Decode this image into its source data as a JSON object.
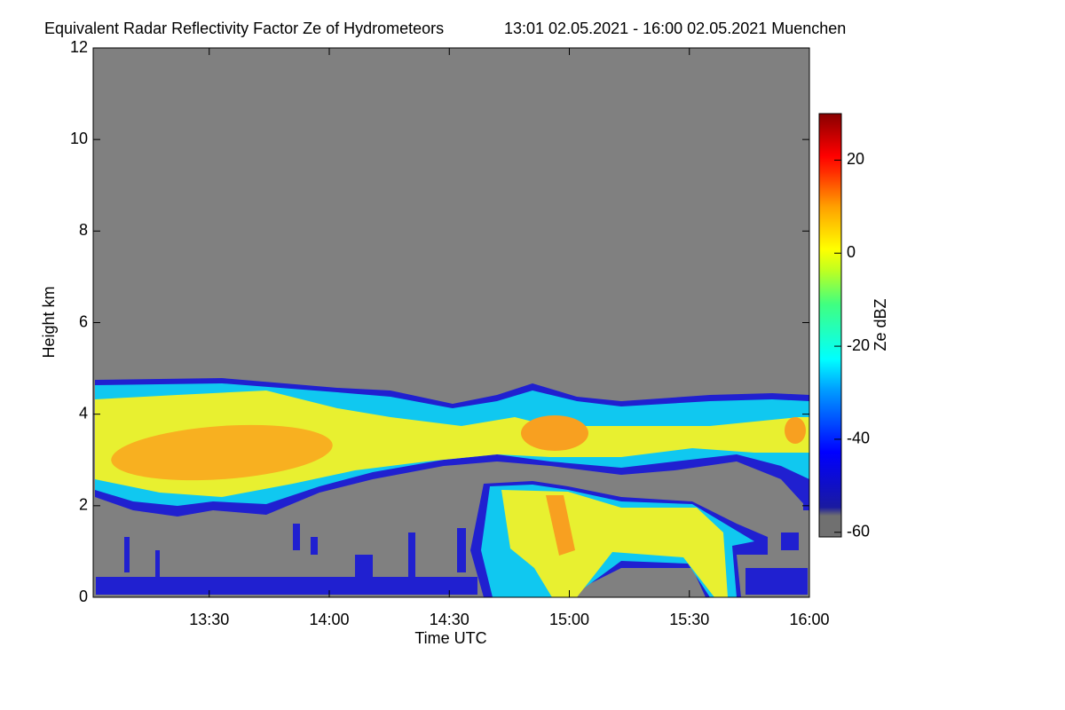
{
  "chart_data": {
    "type": "heatmap",
    "title": "Equivalent Radar Reflectivity Factor Ze of Hydrometeors",
    "subtitle": "13:01 02.05.2021 - 16:00 02.05.2021 Muenchen",
    "x_label": "Time UTC",
    "y_label": "Height km",
    "colorbar_label": "Ze dBZ",
    "xlim": [
      "13:01",
      "16:00"
    ],
    "xticks": [
      "13:30",
      "14:00",
      "14:30",
      "15:00",
      "15:30",
      "16:00"
    ],
    "ylim": [
      0,
      12
    ],
    "yticks": [
      0,
      2,
      4,
      6,
      8,
      10,
      12
    ],
    "clim": [
      -61,
      30
    ],
    "cticks": [
      -60,
      -40,
      -20,
      0,
      20
    ],
    "colormap": "jet"
  }
}
